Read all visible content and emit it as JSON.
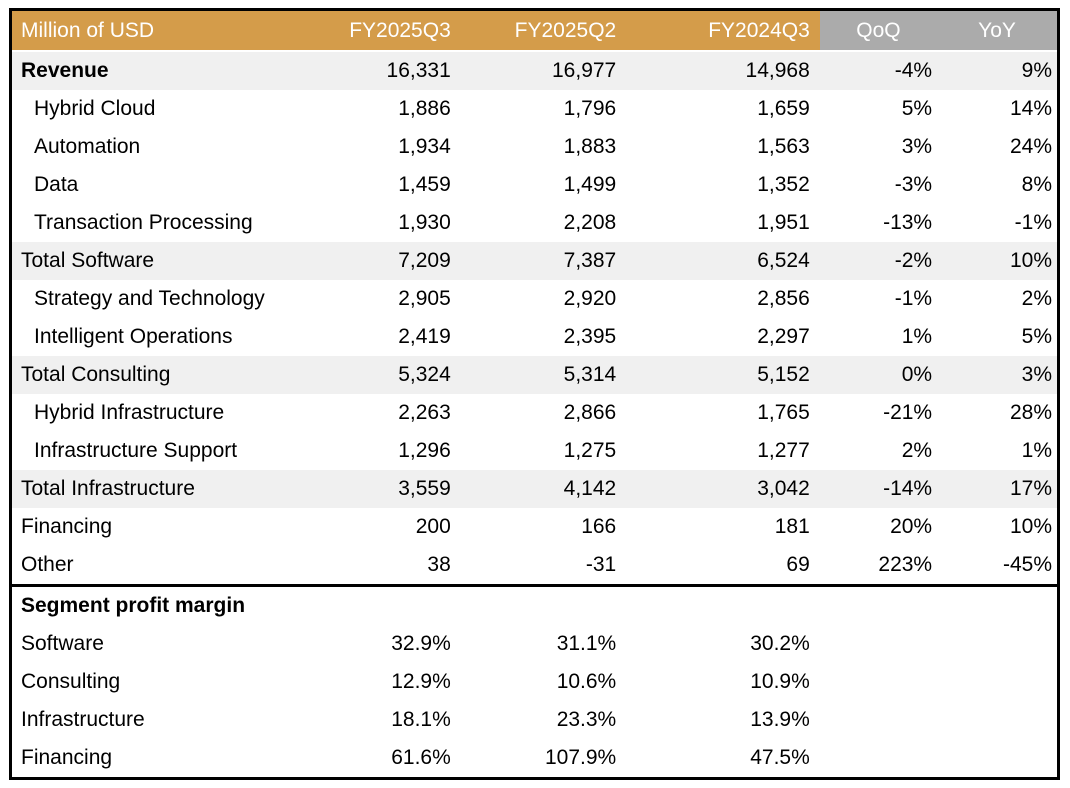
{
  "table": {
    "colors": {
      "header_orange": "#D49C4A",
      "header_gray": "#ABABAB",
      "band_gray": "#F0F0F0",
      "header_text": "#FFFFFF",
      "body_text": "#000000",
      "border_black": "#000000"
    },
    "header": {
      "title": "Million of USD",
      "columns": [
        "FY2025Q3",
        "FY2025Q2",
        "FY2024Q3",
        "QoQ",
        "YoY"
      ]
    },
    "column_keys": [
      "fy2025q3",
      "fy2025q2",
      "fy2024q3",
      "qoq",
      "yoy"
    ],
    "rows": [
      {
        "label": "Revenue",
        "bold": true,
        "indent": false,
        "band": true,
        "values": [
          "16,331",
          "16,977",
          "14,968",
          "-4%",
          "9%"
        ]
      },
      {
        "label": "Hybrid Cloud",
        "bold": false,
        "indent": true,
        "band": false,
        "values": [
          "1,886",
          "1,796",
          "1,659",
          "5%",
          "14%"
        ]
      },
      {
        "label": "Automation",
        "bold": false,
        "indent": true,
        "band": false,
        "values": [
          "1,934",
          "1,883",
          "1,563",
          "3%",
          "24%"
        ]
      },
      {
        "label": "Data",
        "bold": false,
        "indent": true,
        "band": false,
        "values": [
          "1,459",
          "1,499",
          "1,352",
          "-3%",
          "8%"
        ]
      },
      {
        "label": "Transaction Processing",
        "bold": false,
        "indent": true,
        "band": false,
        "values": [
          "1,930",
          "2,208",
          "1,951",
          "-13%",
          "-1%"
        ]
      },
      {
        "label": "Total Software",
        "bold": false,
        "indent": false,
        "band": true,
        "values": [
          "7,209",
          "7,387",
          "6,524",
          "-2%",
          "10%"
        ]
      },
      {
        "label": "Strategy and Technology",
        "bold": false,
        "indent": true,
        "band": false,
        "values": [
          "2,905",
          "2,920",
          "2,856",
          "-1%",
          "2%"
        ]
      },
      {
        "label": "Intelligent Operations",
        "bold": false,
        "indent": true,
        "band": false,
        "values": [
          "2,419",
          "2,395",
          "2,297",
          "1%",
          "5%"
        ]
      },
      {
        "label": "Total Consulting",
        "bold": false,
        "indent": false,
        "band": true,
        "values": [
          "5,324",
          "5,314",
          "5,152",
          "0%",
          "3%"
        ]
      },
      {
        "label": "Hybrid Infrastructure",
        "bold": false,
        "indent": true,
        "band": false,
        "values": [
          "2,263",
          "2,866",
          "1,765",
          "-21%",
          "28%"
        ]
      },
      {
        "label": "Infrastructure Support",
        "bold": false,
        "indent": true,
        "band": false,
        "values": [
          "1,296",
          "1,275",
          "1,277",
          "2%",
          "1%"
        ]
      },
      {
        "label": "Total Infrastructure",
        "bold": false,
        "indent": false,
        "band": true,
        "values": [
          "3,559",
          "4,142",
          "3,042",
          "-14%",
          "17%"
        ]
      },
      {
        "label": "Financing",
        "bold": false,
        "indent": false,
        "band": false,
        "values": [
          "200",
          "166",
          "181",
          "20%",
          "10%"
        ]
      },
      {
        "label": "Other",
        "bold": false,
        "indent": false,
        "band": false,
        "values": [
          "38",
          "-31",
          "69",
          "223%",
          "-45%"
        ]
      }
    ],
    "margin_section": {
      "title": "Segment profit margin",
      "rows": [
        {
          "label": "Software",
          "values": [
            "32.9%",
            "31.1%",
            "30.2%",
            "",
            ""
          ]
        },
        {
          "label": "Consulting",
          "values": [
            "12.9%",
            "10.6%",
            "10.9%",
            "",
            ""
          ]
        },
        {
          "label": "Infrastructure",
          "values": [
            "18.1%",
            "23.3%",
            "13.9%",
            "",
            ""
          ]
        },
        {
          "label": "Financing",
          "values": [
            "61.6%",
            "107.9%",
            "47.5%",
            "",
            ""
          ]
        }
      ]
    }
  }
}
